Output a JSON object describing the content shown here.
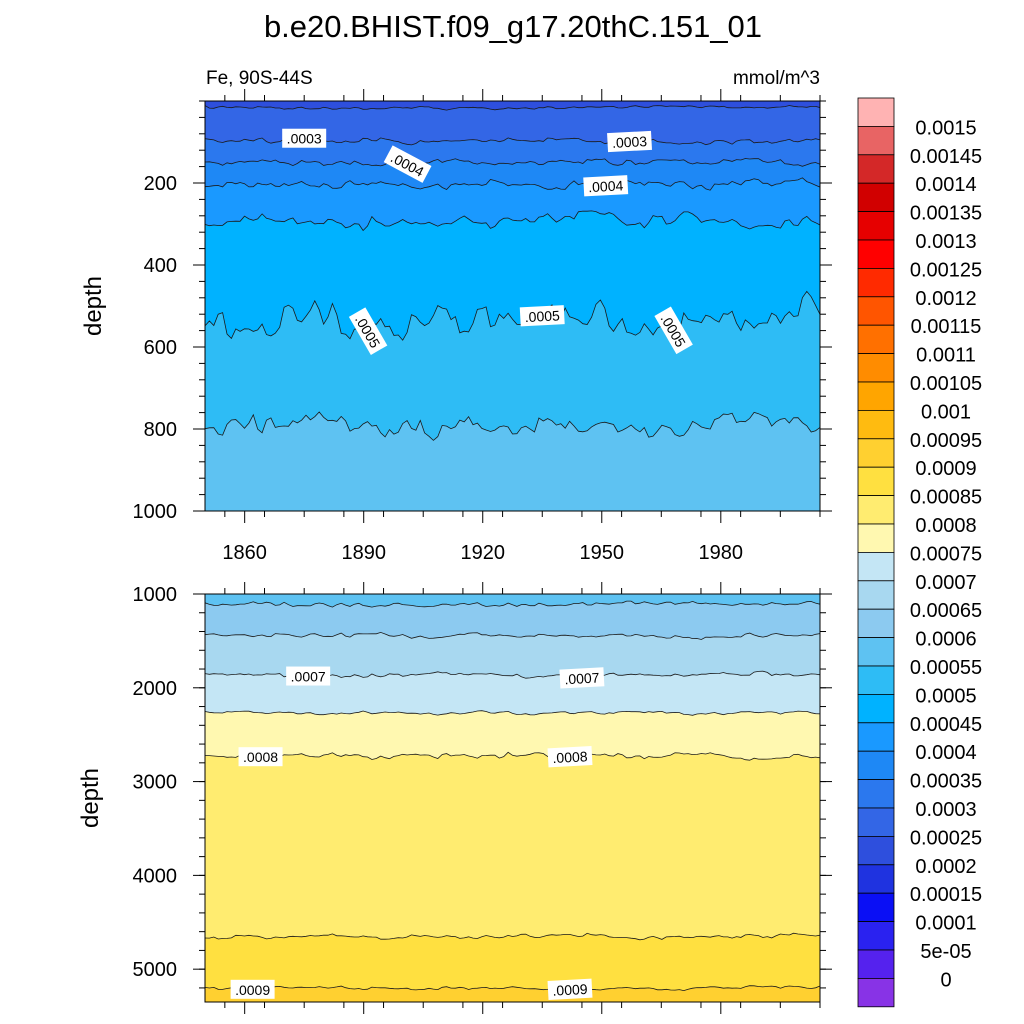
{
  "title": "b.e20.BHIST.f09_g17.20thC.151_01",
  "subtitle_left": "Fe, 90S-44S",
  "subtitle_right": "mmol/m^3",
  "chart_data": [
    {
      "type": "heatmap",
      "panel": "upper",
      "xlabel": "",
      "ylabel": "depth",
      "xlim": [
        1850,
        2005
      ],
      "ylim": [
        1000,
        0
      ],
      "x_ticks": [
        1860,
        1890,
        1920,
        1950,
        1980
      ],
      "x_tick_labels": [
        "1860",
        "1890",
        "1920",
        "1950",
        "1980"
      ],
      "y_ticks": [
        200,
        400,
        600,
        800,
        1000
      ],
      "y_tick_labels": [
        "200",
        "400",
        "600",
        "800",
        "1000"
      ],
      "contours": [
        {
          "level": 0.00025,
          "depth": 15
        },
        {
          "level": 0.0003,
          "depth": 100
        },
        {
          "level": 0.00035,
          "depth": 150
        },
        {
          "level": 0.0004,
          "depth": 205
        },
        {
          "level": 0.00045,
          "depth": 290
        },
        {
          "level": 0.0005,
          "depth": 530
        },
        {
          "level": 0.00055,
          "depth": 790
        }
      ],
      "contour_labels": [
        {
          "text": ".0003",
          "x": 1875,
          "depth": 92
        },
        {
          "text": ".0003",
          "x": 1957,
          "depth": 100
        },
        {
          "text": ".0004",
          "x": 1901,
          "depth": 155
        },
        {
          "text": ".0004",
          "x": 1951,
          "depth": 208
        },
        {
          "text": ".0005",
          "x": 1891,
          "depth": 562
        },
        {
          "text": ".0005",
          "x": 1935,
          "depth": 525
        },
        {
          "text": ".0005",
          "x": 1968,
          "depth": 560
        }
      ]
    },
    {
      "type": "heatmap",
      "panel": "lower",
      "xlabel": "",
      "ylabel": "depth",
      "xlim": [
        1850,
        2005
      ],
      "ylim": [
        5350,
        1000
      ],
      "y_ticks": [
        1000,
        2000,
        3000,
        4000,
        5000
      ],
      "y_tick_labels": [
        "1000",
        "2000",
        "3000",
        "4000",
        "5000"
      ],
      "contours": [
        {
          "level": 0.0006,
          "depth": 1100
        },
        {
          "level": 0.00065,
          "depth": 1450
        },
        {
          "level": 0.0007,
          "depth": 1860
        },
        {
          "level": 0.00075,
          "depth": 2270
        },
        {
          "level": 0.0008,
          "depth": 2720
        },
        {
          "level": 0.00085,
          "depth": 4650
        },
        {
          "level": 0.0009,
          "depth": 5200
        }
      ],
      "contour_labels": [
        {
          "text": ".0007",
          "x": 1876,
          "depth": 1880
        },
        {
          "text": ".0007",
          "x": 1945,
          "depth": 1900
        },
        {
          "text": ".0008",
          "x": 1864,
          "depth": 2740
        },
        {
          "text": ".0008",
          "x": 1942,
          "depth": 2740
        },
        {
          "text": ".0009",
          "x": 1862,
          "depth": 5220
        },
        {
          "text": ".0009",
          "x": 1942,
          "depth": 5220
        }
      ]
    }
  ],
  "colorbar": {
    "levels": [
      "0.0015",
      "0.00145",
      "0.0014",
      "0.00135",
      "0.0013",
      "0.00125",
      "0.0012",
      "0.00115",
      "0.0011",
      "0.00105",
      "0.001",
      "0.00095",
      "0.0009",
      "0.00085",
      "0.0008",
      "0.00075",
      "0.0007",
      "0.00065",
      "0.0006",
      "0.00055",
      "0.0005",
      "0.00045",
      "0.0004",
      "0.00035",
      "0.0003",
      "0.00025",
      "0.0002",
      "0.00015",
      "0.0001",
      "5e-05",
      "0"
    ],
    "colors": [
      "#ffb3b3",
      "#e86464",
      "#d42828",
      "#d10000",
      "#e60000",
      "#ff0000",
      "#ff2a00",
      "#ff5500",
      "#ff7000",
      "#ff8c00",
      "#ffa500",
      "#ffbb10",
      "#ffd030",
      "#ffe040",
      "#ffec70",
      "#fff8b0",
      "#c4e6f5",
      "#a8d8f0",
      "#8ccaf0",
      "#5ec2f2",
      "#2ebcf5",
      "#00b2ff",
      "#1a99ff",
      "#1e88f5",
      "#2b78ee",
      "#3366e6",
      "#2e4fdd",
      "#1f33e0",
      "#0a0ff5",
      "#2a22f0",
      "#5522ee",
      "#8833e6"
    ]
  }
}
